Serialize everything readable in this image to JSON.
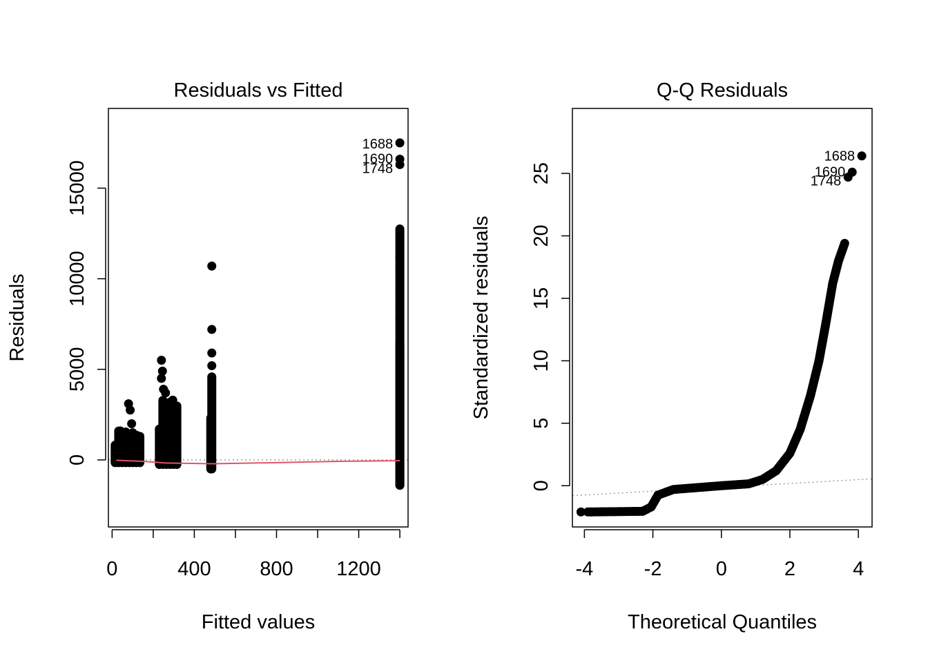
{
  "colors": {
    "points": "#000000",
    "smooth": "#DF536B",
    "reference": "#9E9E9E",
    "axis": "#000000"
  },
  "chart_data": [
    {
      "type": "scatter",
      "title": "Residuals vs Fitted",
      "xlabel": "Fitted values",
      "ylabel": "Residuals",
      "xlim": [
        -18,
        1440
      ],
      "ylim": [
        -3700,
        19400
      ],
      "xticks": [
        0,
        200,
        400,
        600,
        800,
        1000,
        1200,
        1400
      ],
      "xtick_labels": [
        "0",
        "400",
        "800",
        "1200"
      ],
      "xtick_label_values": [
        0,
        400,
        800,
        1200
      ],
      "yticks": [
        0,
        5000,
        10000,
        15000
      ],
      "ytick_labels": [
        "0",
        "5000",
        "10000",
        "15000"
      ],
      "reference_line_y": 0,
      "columns": [
        {
          "x": [
            15,
            135
          ],
          "ymin": -150,
          "ymax": 1600
        },
        {
          "x": [
            230,
            315
          ],
          "ymin": -250,
          "ymax": 3300
        },
        {
          "x": [
            480,
            485
          ],
          "ymin": -500,
          "ymax": 4600
        },
        {
          "x": [
            1400,
            1400
          ],
          "ymin": -1400,
          "ymax": 12800
        }
      ],
      "points": [
        {
          "x": 20,
          "y": 300
        },
        {
          "x": 30,
          "y": 900
        },
        {
          "x": 40,
          "y": 1600
        },
        {
          "x": 55,
          "y": 600
        },
        {
          "x": 70,
          "y": 1200
        },
        {
          "x": 80,
          "y": 3100
        },
        {
          "x": 88,
          "y": 2750
        },
        {
          "x": 95,
          "y": 2000
        },
        {
          "x": 100,
          "y": 1500
        },
        {
          "x": 110,
          "y": 900
        },
        {
          "x": 120,
          "y": 1100
        },
        {
          "x": 130,
          "y": 400
        },
        {
          "x": 240,
          "y": 5500
        },
        {
          "x": 245,
          "y": 4900
        },
        {
          "x": 240,
          "y": 4500
        },
        {
          "x": 250,
          "y": 3900
        },
        {
          "x": 260,
          "y": 3700
        },
        {
          "x": 280,
          "y": 3100
        },
        {
          "x": 295,
          "y": 3300
        },
        {
          "x": 270,
          "y": 2600
        },
        {
          "x": 485,
          "y": 10700
        },
        {
          "x": 485,
          "y": 7200
        },
        {
          "x": 485,
          "y": 5900
        },
        {
          "x": 485,
          "y": 5200
        },
        {
          "x": 1400,
          "y": 12200
        },
        {
          "x": 1400,
          "y": 11200
        },
        {
          "x": 1400,
          "y": 10500
        },
        {
          "x": 1400,
          "y": 9300
        },
        {
          "x": 1400,
          "y": 8500
        },
        {
          "x": 1400,
          "y": 7800
        },
        {
          "x": 1400,
          "y": 6500
        },
        {
          "x": 1400,
          "y": 5800
        }
      ],
      "smooth_line": [
        {
          "x": 20,
          "y": -20
        },
        {
          "x": 150,
          "y": -80
        },
        {
          "x": 260,
          "y": -170
        },
        {
          "x": 490,
          "y": -210
        },
        {
          "x": 800,
          "y": -150
        },
        {
          "x": 1100,
          "y": -80
        },
        {
          "x": 1400,
          "y": -40
        }
      ],
      "labeled_points": [
        {
          "label": "1688",
          "x": 1400,
          "y": 17500
        },
        {
          "label": "1690",
          "x": 1400,
          "y": 16600
        },
        {
          "label": "1748",
          "x": 1400,
          "y": 16300
        }
      ]
    },
    {
      "type": "scatter",
      "title": "Q-Q Residuals",
      "xlabel": "Theoretical Quantiles",
      "ylabel": "Standardized residuals",
      "xlim": [
        -4.35,
        4.4
      ],
      "ylim": [
        -3.3,
        30.2
      ],
      "xticks": [
        -4,
        -2,
        0,
        2,
        4
      ],
      "xtick_labels": [
        "-4",
        "-2",
        "0",
        "2",
        "4"
      ],
      "yticks": [
        0,
        5,
        10,
        15,
        20,
        25
      ],
      "ytick_labels": [
        "0",
        "5",
        "10",
        "15",
        "20",
        "25"
      ],
      "reference_line": [
        {
          "x": -4.35,
          "y": -0.8
        },
        {
          "x": 4.4,
          "y": 0.55
        }
      ],
      "qq_curve": [
        {
          "x": -3.9,
          "y": -2.1
        },
        {
          "x": -2.3,
          "y": -2.05
        },
        {
          "x": -2.05,
          "y": -1.7
        },
        {
          "x": -1.85,
          "y": -0.75
        },
        {
          "x": -1.4,
          "y": -0.3
        },
        {
          "x": -0.7,
          "y": -0.15
        },
        {
          "x": 0.0,
          "y": 0.0
        },
        {
          "x": 0.8,
          "y": 0.15
        },
        {
          "x": 1.2,
          "y": 0.5
        },
        {
          "x": 1.6,
          "y": 1.2
        },
        {
          "x": 2.0,
          "y": 2.6
        },
        {
          "x": 2.3,
          "y": 4.5
        },
        {
          "x": 2.6,
          "y": 7.2
        },
        {
          "x": 2.85,
          "y": 10.0
        },
        {
          "x": 3.05,
          "y": 13.0
        },
        {
          "x": 3.25,
          "y": 16.2
        },
        {
          "x": 3.42,
          "y": 18.0
        },
        {
          "x": 3.6,
          "y": 19.4
        }
      ],
      "points": [
        {
          "x": -4.1,
          "y": -2.1
        },
        {
          "x": -3.8,
          "y": -2.1
        },
        {
          "x": 3.6,
          "y": 19.4
        }
      ],
      "labeled_points": [
        {
          "label": "1688",
          "x": 4.1,
          "y": 26.4
        },
        {
          "label": "1690",
          "x": 3.82,
          "y": 25.1
        },
        {
          "label": "1748",
          "x": 3.7,
          "y": 24.7
        }
      ]
    }
  ]
}
